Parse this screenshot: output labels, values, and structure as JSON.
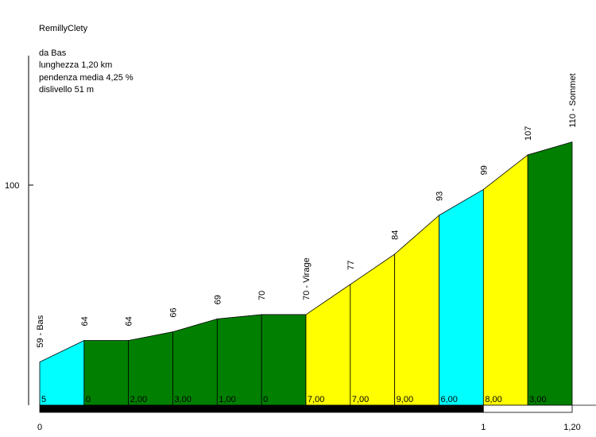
{
  "chart_data": {
    "type": "area",
    "title": "RemillyClety",
    "info_lines": [
      "da Bas",
      "lunghezza 1,20 km",
      "pendenza media 4,25 %",
      "dislivello 51 m"
    ],
    "y_tick": {
      "value": 100,
      "label": "100"
    },
    "ylim": [
      49,
      130
    ],
    "xlim": [
      0,
      1.2
    ],
    "x_ticks": [
      {
        "value": 0,
        "label": "0"
      },
      {
        "value": 1,
        "label": "1"
      },
      {
        "value": 1.2,
        "label": "1,20"
      }
    ],
    "points": [
      {
        "x": 0.0,
        "elevation": 59,
        "label": "59 - Bas"
      },
      {
        "x": 0.1,
        "elevation": 64,
        "label": "64"
      },
      {
        "x": 0.2,
        "elevation": 64,
        "label": "64"
      },
      {
        "x": 0.3,
        "elevation": 66,
        "label": "66"
      },
      {
        "x": 0.4,
        "elevation": 69,
        "label": "69"
      },
      {
        "x": 0.5,
        "elevation": 70,
        "label": "70"
      },
      {
        "x": 0.6,
        "elevation": 70,
        "label": "70 - Virage"
      },
      {
        "x": 0.7,
        "elevation": 77,
        "label": "77"
      },
      {
        "x": 0.8,
        "elevation": 84,
        "label": "84"
      },
      {
        "x": 0.9,
        "elevation": 93,
        "label": "93"
      },
      {
        "x": 1.0,
        "elevation": 99,
        "label": "99"
      },
      {
        "x": 1.1,
        "elevation": 107,
        "label": "107"
      },
      {
        "x": 1.2,
        "elevation": 110,
        "label": "110 - Sommet"
      }
    ],
    "segments": [
      {
        "gradient": "5",
        "color": "#00FFFF"
      },
      {
        "gradient": "0",
        "color": "#007F00"
      },
      {
        "gradient": "2,00",
        "color": "#007F00"
      },
      {
        "gradient": "3,00",
        "color": "#007F00"
      },
      {
        "gradient": "1,00",
        "color": "#007F00"
      },
      {
        "gradient": "0",
        "color": "#007F00"
      },
      {
        "gradient": "7,00",
        "color": "#FFFF00"
      },
      {
        "gradient": "7,00",
        "color": "#FFFF00"
      },
      {
        "gradient": "9,00",
        "color": "#FFFF00"
      },
      {
        "gradient": "6,00",
        "color": "#00FFFF"
      },
      {
        "gradient": "8,00",
        "color": "#FFFF00"
      },
      {
        "gradient": "3,00",
        "color": "#007F00"
      }
    ],
    "distance_bar": [
      {
        "from": 0,
        "to": 1,
        "color": "#000000"
      },
      {
        "from": 1,
        "to": 1.2,
        "color": "#FFFFFF"
      }
    ],
    "grid": false
  }
}
